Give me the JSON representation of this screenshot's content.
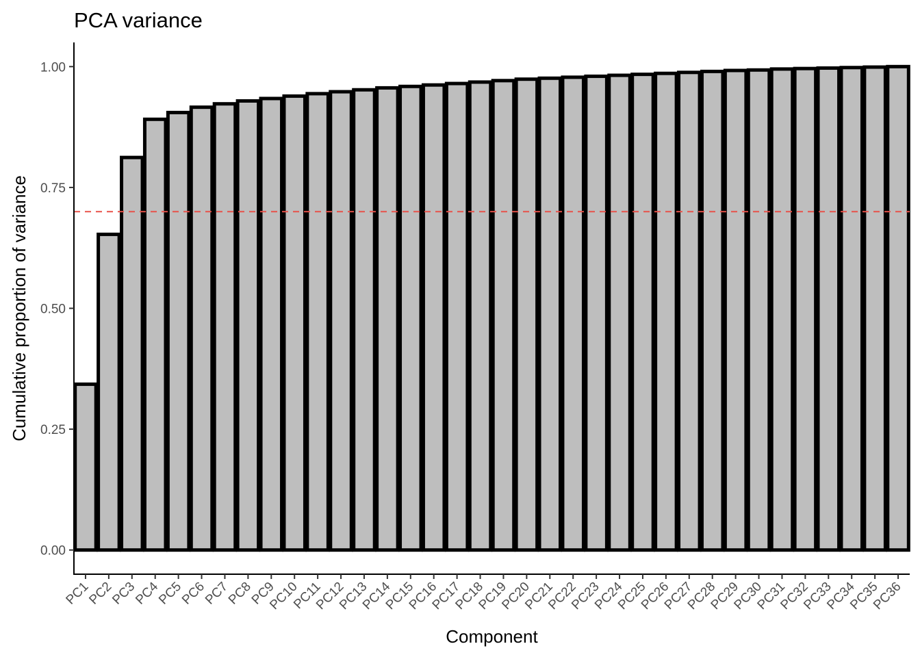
{
  "chart_data": {
    "type": "bar",
    "title": "PCA variance",
    "xlabel": "Component",
    "ylabel": "Cumulative proportion of variance",
    "categories": [
      "PC1",
      "PC2",
      "PC3",
      "PC4",
      "PC5",
      "PC6",
      "PC7",
      "PC8",
      "PC9",
      "PC10",
      "PC11",
      "PC12",
      "PC13",
      "PC14",
      "PC15",
      "PC16",
      "PC17",
      "PC18",
      "PC19",
      "PC20",
      "PC21",
      "PC22",
      "PC23",
      "PC24",
      "PC25",
      "PC26",
      "PC27",
      "PC28",
      "PC29",
      "PC30",
      "PC31",
      "PC32",
      "PC33",
      "PC34",
      "PC35",
      "PC36"
    ],
    "values": [
      0.343,
      0.653,
      0.812,
      0.891,
      0.905,
      0.916,
      0.923,
      0.929,
      0.934,
      0.939,
      0.944,
      0.948,
      0.952,
      0.956,
      0.959,
      0.962,
      0.965,
      0.968,
      0.971,
      0.974,
      0.976,
      0.978,
      0.98,
      0.982,
      0.984,
      0.986,
      0.988,
      0.99,
      0.992,
      0.993,
      0.995,
      0.996,
      0.997,
      0.998,
      0.999,
      1.0
    ],
    "yticks": [
      "0.00",
      "0.25",
      "0.50",
      "0.75",
      "1.00"
    ],
    "ylim": [
      -0.05,
      1.05
    ],
    "reference_line": {
      "y": 0.7,
      "color": "#e8524a",
      "style": "dashed"
    },
    "bar_fill": "#bebebe",
    "bar_outline": "#000000",
    "grid": false,
    "legend": "none"
  }
}
